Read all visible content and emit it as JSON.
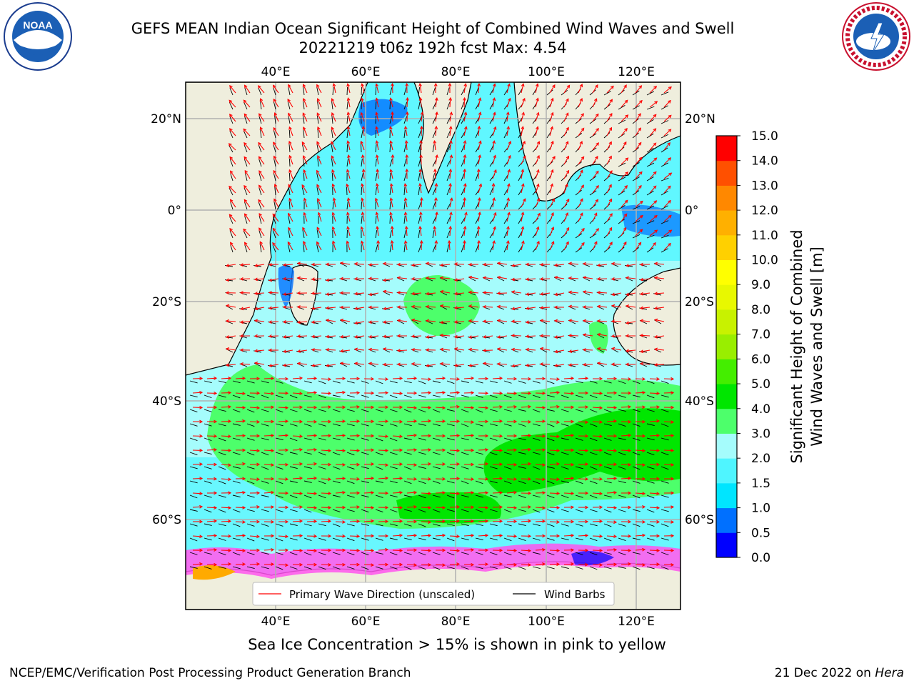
{
  "title": {
    "line1": "GEFS MEAN Indian Ocean Significant Height of Combined Wind Waves and Swell",
    "line2": "20221219 t06z 192h fcst   Max: 4.54"
  },
  "logos": {
    "left": {
      "icon": "noaa-logo",
      "text": "NOAA"
    },
    "right": {
      "icon": "nws-logo"
    }
  },
  "map": {
    "lon_ticks": [
      "40°E",
      "60°E",
      "80°E",
      "100°E",
      "120°E"
    ],
    "lat_ticks": [
      "20°N",
      "0°",
      "20°S",
      "40°S",
      "60°S"
    ],
    "lon_values": [
      40,
      60,
      80,
      100,
      120
    ],
    "lat_values": [
      20,
      0,
      -20,
      -40,
      -60
    ],
    "extent": {
      "lon": [
        20,
        130
      ],
      "lat": [
        -70,
        28
      ]
    },
    "legend": {
      "primary_wave": "Primary Wave Direction (unscaled)",
      "wind_barbs": "Wind Barbs",
      "primary_wave_color": "#ff0000",
      "wind_barbs_color": "#000000"
    },
    "land_color": "#efeedd"
  },
  "colorbar": {
    "label_line1": "Significant Height of Combined",
    "label_line2": "Wind Waves and Swell [m]",
    "ticks": [
      "0.0",
      "0.5",
      "1.0",
      "1.5",
      "2.0",
      "3.0",
      "4.0",
      "5.0",
      "6.0",
      "7.0",
      "8.0",
      "9.0",
      "10.0",
      "11.0",
      "12.0",
      "13.0",
      "14.0",
      "15.0"
    ],
    "colors": [
      "#0000ff",
      "#0070ff",
      "#00e5ff",
      "#4ff5ff",
      "#a5fcfc",
      "#4dff6b",
      "#00e600",
      "#44ee00",
      "#99ee00",
      "#c8f200",
      "#e8f800",
      "#ffff00",
      "#ffd000",
      "#ffb000",
      "#ff8800",
      "#ff5000",
      "#ff0000"
    ]
  },
  "caption": "Sea Ice Concentration > 15% is shown in pink to yellow",
  "footer": {
    "left": "NCEP/EMC/Verification Post Processing Product Generation Branch",
    "right_prefix": "21 Dec 2022 on ",
    "right_machine": "Hera"
  }
}
